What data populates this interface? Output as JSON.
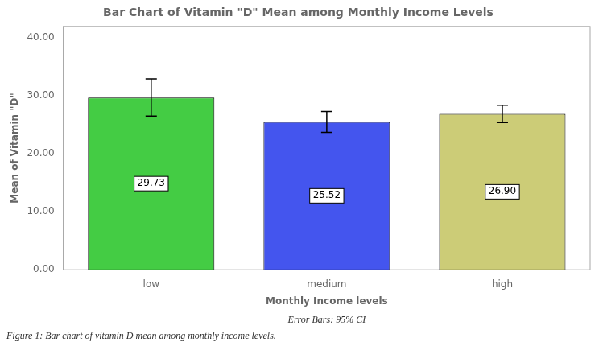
{
  "chart_data": {
    "type": "bar",
    "title": "Bar Chart of Vitamin \"D\" Mean among Monthly Income Levels",
    "xlabel": "Monthly Income levels",
    "ylabel": "Mean of Vitamin \"D\"",
    "annotations": [
      "Error Bars: 95% CI",
      "Figure 1: Bar chart of vitamin D mean among monthly income levels."
    ],
    "categories": [
      "low",
      "medium",
      "high"
    ],
    "values": [
      29.73,
      25.52,
      26.9
    ],
    "value_labels": [
      "29.73",
      "25.52",
      "26.90"
    ],
    "errors": [
      3.2,
      1.8,
      1.5
    ],
    "colors": [
      "#44cc44",
      "#4455ee",
      "#cccc77"
    ],
    "ylim": [
      0,
      42
    ],
    "yticks": [
      {
        "value": 0,
        "label": "0.00"
      },
      {
        "value": 10,
        "label": "10.00"
      },
      {
        "value": 20,
        "label": "20.00"
      },
      {
        "value": 30,
        "label": "30.00"
      },
      {
        "value": 40,
        "label": "40.00"
      }
    ],
    "grid": false,
    "data_labels": true
  }
}
